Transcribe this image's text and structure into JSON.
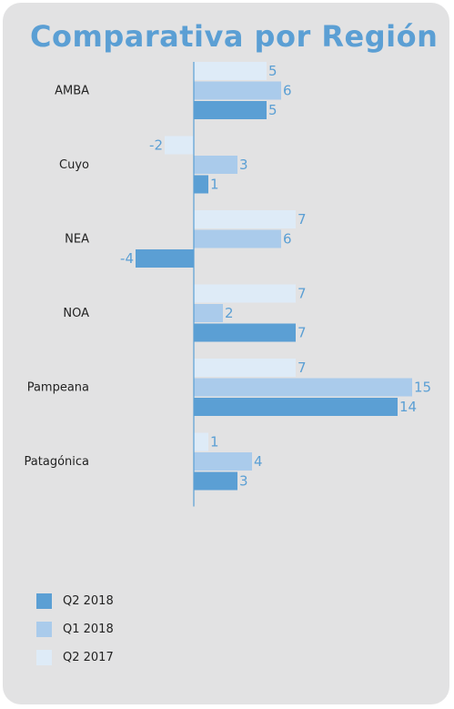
{
  "chart_data": {
    "type": "bar",
    "orientation": "horizontal",
    "title": "Comparativa por Región",
    "categories": [
      "AMBA",
      "Cuyo",
      "NEA",
      "NOA",
      "Pampeana",
      "Patagónica"
    ],
    "series": [
      {
        "name": "Q2 2017",
        "values": [
          5,
          -2,
          7,
          7,
          7,
          1
        ],
        "color": "#deebf7"
      },
      {
        "name": "Q1 2018",
        "values": [
          6,
          3,
          6,
          2,
          15,
          4
        ],
        "color": "#aacbeb"
      },
      {
        "name": "Q2 2018",
        "values": [
          5,
          1,
          -4,
          7,
          14,
          3
        ],
        "color": "#5b9fd4"
      }
    ],
    "xlim": [
      -4,
      15
    ],
    "grid": false,
    "legend_position": "bottom-left",
    "legend_order": [
      "Q2 2018",
      "Q1 2018",
      "Q2 2017"
    ],
    "label_color": "#5b9fd4"
  }
}
